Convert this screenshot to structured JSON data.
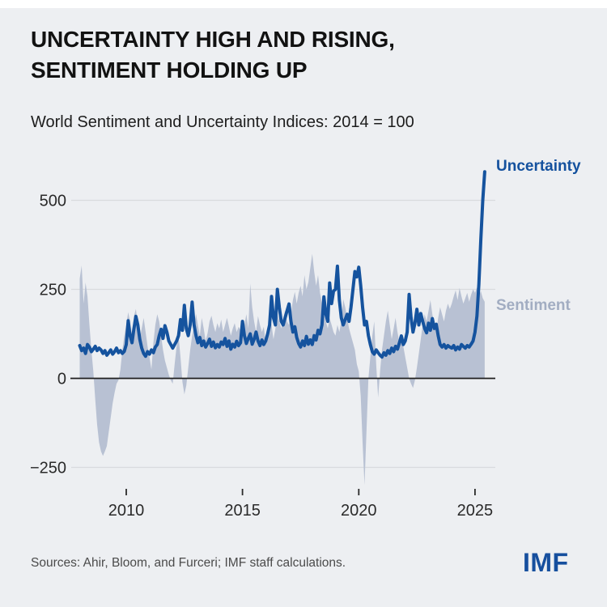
{
  "header": {
    "title_lines": [
      "UNCERTAINTY HIGH AND RISING,",
      "SENTIMENT HOLDING UP"
    ],
    "subtitle": "World Sentiment and Uncertainty Indices: 2014 = 100"
  },
  "footer": {
    "source": "Sources: Ahir, Bloom, and Furceri; IMF staff calculations.",
    "logo_text": "IMF"
  },
  "colors": {
    "background": "#edeff2",
    "uncertainty_line": "#15539e",
    "sentiment_fill": "#b8c1d3",
    "sentiment_label": "#a2adc2",
    "grid": "#d9dbde",
    "zero_axis": "#1f1f1f",
    "tick_text": "#2a2a2a",
    "imf_blue": "#164f9e"
  },
  "chart_data": {
    "type": "line",
    "title": "World Sentiment and Uncertainty Indices: 2014 = 100",
    "x_start_year": 2008,
    "x_step_months": 1,
    "x_end_year": 2025.417,
    "x_axis": {
      "ticks": [
        2010,
        2015,
        2020,
        2025
      ],
      "labels": [
        "2010",
        "2015",
        "2020",
        "2025"
      ]
    },
    "y_axis": {
      "ticks": [
        500,
        250,
        0,
        -250
      ],
      "labels": [
        "500",
        "250",
        "0",
        "−250"
      ],
      "range": [
        -320,
        600
      ],
      "grid": true
    },
    "legend_position": "right-annotations",
    "series": [
      {
        "name": "Uncertainty",
        "style": "line",
        "color": "#15539e",
        "values": [
          92,
          78,
          85,
          70,
          95,
          88,
          75,
          82,
          90,
          78,
          85,
          80,
          70,
          78,
          65,
          72,
          80,
          68,
          75,
          85,
          72,
          78,
          70,
          76,
          95,
          162,
          120,
          100,
          140,
          174,
          150,
          110,
          85,
          70,
          62,
          75,
          68,
          80,
          72,
          88,
          95,
          120,
          138,
          112,
          148,
          130,
          105,
          95,
          85,
          95,
          105,
          120,
          165,
          135,
          205,
          140,
          120,
          150,
          214,
          150,
          120,
          100,
          115,
          92,
          105,
          88,
          98,
          110,
          90,
          102,
          86,
          95,
          88,
          102,
          95,
          112,
          90,
          105,
          82,
          96,
          88,
          104,
          92,
          100,
          160,
          120,
          98,
          112,
          125,
          96,
          110,
          130,
          105,
          92,
          108,
          95,
          105,
          125,
          150,
          230,
          170,
          150,
          250,
          200,
          160,
          150,
          170,
          190,
          209,
          160,
          130,
          145,
          115,
          98,
          88,
          105,
          92,
          118,
          96,
          108,
          95,
          120,
          108,
          135,
          125,
          150,
          229,
          180,
          160,
          268,
          210,
          245,
          250,
          315,
          220,
          170,
          150,
          165,
          180,
          160,
          200,
          250,
          300,
          285,
          312,
          260,
          200,
          150,
          160,
          120,
          95,
          75,
          68,
          80,
          72,
          65,
          60,
          72,
          65,
          78,
          70,
          85,
          75,
          90,
          82,
          100,
          119,
          95,
          105,
          130,
          236,
          170,
          130,
          155,
          194,
          150,
          182,
          160,
          140,
          128,
          155,
          135,
          168,
          140,
          152,
          120,
          95,
          88,
          95,
          85,
          92,
          88,
          85,
          92,
          80,
          88,
          82,
          95,
          90,
          85,
          92,
          88,
          96,
          105,
          130,
          175,
          265,
          390,
          500,
          580
        ]
      },
      {
        "name": "Sentiment",
        "style": "area",
        "color": "#b8c1d3",
        "values": [
          280,
          317,
          210,
          269,
          230,
          150,
          80,
          20,
          -60,
          -130,
          -180,
          -205,
          -218,
          -205,
          -190,
          -150,
          -110,
          -70,
          -40,
          -15,
          -5,
          25,
          80,
          120,
          150,
          186,
          160,
          120,
          175,
          195,
          150,
          110,
          140,
          170,
          130,
          90,
          60,
          25,
          100,
          150,
          180,
          160,
          120,
          80,
          50,
          30,
          10,
          -5,
          -15,
          40,
          90,
          120,
          60,
          -10,
          -45,
          -20,
          30,
          80,
          120,
          150,
          181,
          150,
          120,
          170,
          140,
          105,
          127,
          160,
          176,
          150,
          130,
          155,
          140,
          165,
          130,
          150,
          170,
          145,
          120,
          140,
          155,
          130,
          145,
          135,
          120,
          150,
          180,
          140,
          266,
          200,
          160,
          130,
          175,
          150,
          130,
          145,
          100,
          130,
          170,
          150,
          110,
          140,
          180,
          160,
          140,
          170,
          190,
          160,
          150,
          180,
          220,
          243,
          210,
          240,
          260,
          230,
          290,
          250,
          270,
          310,
          350,
          300,
          260,
          290,
          240,
          210,
          180,
          160,
          140,
          170,
          150,
          130,
          120,
          150,
          130,
          160,
          222,
          200,
          170,
          140,
          120,
          100,
          80,
          40,
          20,
          -50,
          -180,
          -300,
          -150,
          0,
          60,
          120,
          160,
          40,
          -54,
          20,
          80,
          120,
          160,
          190,
          150,
          110,
          140,
          170,
          130,
          100,
          120,
          90,
          60,
          30,
          0,
          -15,
          -27,
          -5,
          30,
          70,
          110,
          150,
          180,
          160,
          190,
          220,
          180,
          150,
          130,
          170,
          200,
          180,
          160,
          190,
          210,
          195,
          210,
          230,
          247,
          220,
          254,
          230,
          210,
          225,
          240,
          215,
          235,
          250,
          240,
          255,
          230,
          245,
          225,
          215
        ]
      }
    ]
  }
}
